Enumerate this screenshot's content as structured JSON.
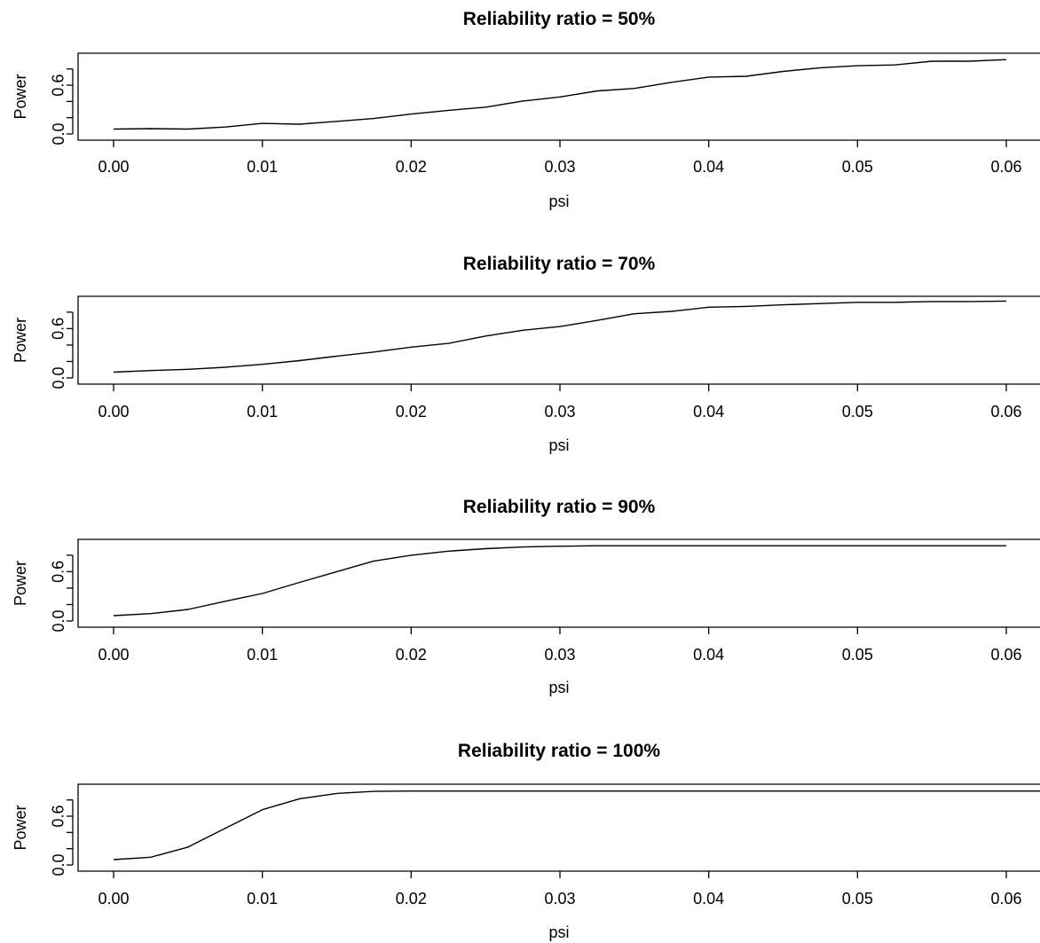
{
  "chart_data": [
    {
      "type": "line",
      "title": "Reliability ratio = 50%",
      "xlabel": "psi",
      "ylabel": "Power",
      "xlim": [
        -0.0025,
        0.0625
      ],
      "ylim": [
        0.0,
        0.95
      ],
      "xticks": [
        0.0,
        0.01,
        0.02,
        0.03,
        0.04,
        0.05,
        0.06
      ],
      "xtick_labels": [
        "0.00",
        "0.01",
        "0.02",
        "0.03",
        "0.04",
        "0.05",
        "0.06"
      ],
      "yticks": [
        0.0,
        0.2,
        0.4,
        0.6,
        0.8
      ],
      "ytick_labels": [
        "0.0",
        "",
        "",
        "0.6",
        ""
      ],
      "series": [
        {
          "x": [
            0.0,
            0.0025,
            0.005,
            0.0075,
            0.01,
            0.0125,
            0.015,
            0.0175,
            0.02,
            0.0225,
            0.025,
            0.0275,
            0.03,
            0.0325,
            0.035,
            0.0375,
            0.04,
            0.0425,
            0.045,
            0.0475,
            0.05,
            0.0525,
            0.055,
            0.0575,
            0.06
          ],
          "values": [
            0.06,
            0.065,
            0.06,
            0.085,
            0.13,
            0.12,
            0.155,
            0.19,
            0.245,
            0.29,
            0.33,
            0.405,
            0.455,
            0.53,
            0.56,
            0.635,
            0.7,
            0.71,
            0.77,
            0.815,
            0.84,
            0.85,
            0.895,
            0.895,
            0.915
          ]
        }
      ]
    },
    {
      "type": "line",
      "title": "Reliability ratio = 70%",
      "xlabel": "psi",
      "ylabel": "Power",
      "xlim": [
        -0.0025,
        0.0625
      ],
      "ylim": [
        0.0,
        0.95
      ],
      "xticks": [
        0.0,
        0.01,
        0.02,
        0.03,
        0.04,
        0.05,
        0.06
      ],
      "xtick_labels": [
        "0.00",
        "0.01",
        "0.02",
        "0.03",
        "0.04",
        "0.05",
        "0.06"
      ],
      "yticks": [
        0.0,
        0.2,
        0.4,
        0.6,
        0.8
      ],
      "ytick_labels": [
        "0.0",
        "",
        "",
        "0.6",
        ""
      ],
      "series": [
        {
          "x": [
            0.0,
            0.0025,
            0.005,
            0.0075,
            0.01,
            0.0125,
            0.015,
            0.0175,
            0.02,
            0.0225,
            0.025,
            0.0275,
            0.03,
            0.0325,
            0.035,
            0.0375,
            0.04,
            0.0425,
            0.045,
            0.0475,
            0.05,
            0.0525,
            0.055,
            0.0575,
            0.06
          ],
          "values": [
            0.07,
            0.09,
            0.105,
            0.13,
            0.165,
            0.21,
            0.265,
            0.315,
            0.375,
            0.42,
            0.51,
            0.58,
            0.625,
            0.7,
            0.78,
            0.81,
            0.86,
            0.87,
            0.89,
            0.905,
            0.92,
            0.92,
            0.93,
            0.93,
            0.935
          ]
        }
      ]
    },
    {
      "type": "line",
      "title": "Reliability ratio = 90%",
      "xlabel": "psi",
      "ylabel": "Power",
      "xlim": [
        -0.0025,
        0.0625
      ],
      "ylim": [
        0.0,
        0.95
      ],
      "xticks": [
        0.0,
        0.01,
        0.02,
        0.03,
        0.04,
        0.05,
        0.06
      ],
      "xtick_labels": [
        "0.00",
        "0.01",
        "0.02",
        "0.03",
        "0.04",
        "0.05",
        "0.06"
      ],
      "yticks": [
        0.0,
        0.2,
        0.4,
        0.6,
        0.8
      ],
      "ytick_labels": [
        "0.0",
        "",
        "",
        "0.6",
        ""
      ],
      "series": [
        {
          "x": [
            0.0,
            0.0025,
            0.005,
            0.0075,
            0.01,
            0.0125,
            0.015,
            0.0175,
            0.02,
            0.0225,
            0.025,
            0.0275,
            0.03,
            0.0325,
            0.035,
            0.0375,
            0.04,
            0.0425,
            0.045,
            0.0475,
            0.05,
            0.0525,
            0.055,
            0.0575,
            0.06
          ],
          "values": [
            0.065,
            0.09,
            0.14,
            0.24,
            0.335,
            0.47,
            0.6,
            0.73,
            0.8,
            0.85,
            0.88,
            0.9,
            0.91,
            0.915,
            0.915,
            0.915,
            0.915,
            0.915,
            0.915,
            0.915,
            0.915,
            0.915,
            0.915,
            0.915,
            0.915
          ]
        }
      ]
    },
    {
      "type": "line",
      "title": "Reliability ratio = 100%",
      "xlabel": "psi",
      "ylabel": "Power",
      "xlim": [
        -0.0025,
        0.065
      ],
      "ylim": [
        0.0,
        0.95
      ],
      "xticks": [
        0.0,
        0.01,
        0.02,
        0.03,
        0.04,
        0.05,
        0.06
      ],
      "xtick_labels": [
        "0.00",
        "0.01",
        "0.02",
        "0.03",
        "0.04",
        "0.05",
        "0.06"
      ],
      "yticks": [
        0.0,
        0.2,
        0.4,
        0.6,
        0.8
      ],
      "ytick_labels": [
        "0.0",
        "",
        "",
        "0.6",
        ""
      ],
      "series": [
        {
          "x": [
            0.0,
            0.0025,
            0.005,
            0.0075,
            0.01,
            0.0125,
            0.015,
            0.0175,
            0.02,
            0.025,
            0.03,
            0.035,
            0.04,
            0.045,
            0.05,
            0.055,
            0.0625
          ],
          "values": [
            0.065,
            0.095,
            0.22,
            0.45,
            0.68,
            0.815,
            0.88,
            0.905,
            0.91,
            0.91,
            0.91,
            0.91,
            0.91,
            0.91,
            0.91,
            0.91,
            0.91
          ]
        }
      ]
    }
  ]
}
